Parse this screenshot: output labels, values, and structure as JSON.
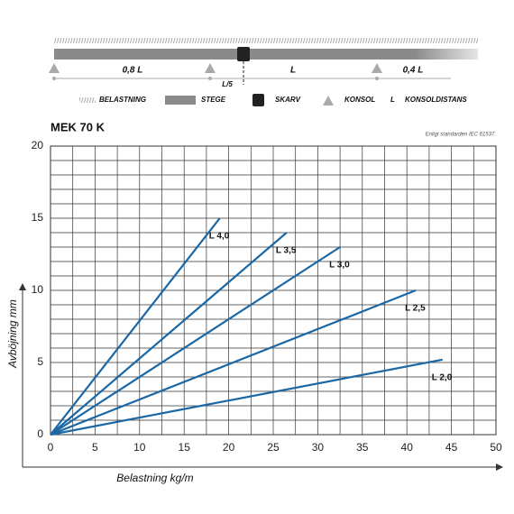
{
  "diagram": {
    "spans": [
      "0,8 L",
      "L",
      "0,4 L"
    ],
    "splice_offset": "L/5",
    "legend": [
      "BELASTNING",
      "STEGE",
      "SKARV",
      "KONSOL",
      "L",
      "KONSOLDISTANS"
    ]
  },
  "chart_data": {
    "type": "line",
    "title": "MEK 70 K",
    "subtitle": "Enligt standarden IEC 61537.",
    "x_label": "Belastning kg/m",
    "y_label": "Avböjning mm",
    "xlim": [
      0,
      50
    ],
    "ylim": [
      0,
      20
    ],
    "xticks": [
      0,
      5,
      10,
      15,
      20,
      25,
      30,
      35,
      40,
      45,
      50
    ],
    "yticks": [
      0,
      5,
      10,
      15,
      20
    ],
    "grid": true,
    "series": [
      {
        "name": "L 4,0",
        "color": "#1a67a6",
        "x": [
          0,
          19
        ],
        "values": [
          0,
          15
        ]
      },
      {
        "name": "L 3,5",
        "color": "#1a67a6",
        "x": [
          0,
          26.5
        ],
        "values": [
          0,
          14
        ]
      },
      {
        "name": "L 3,0",
        "color": "#1a67a6",
        "x": [
          0,
          32.5
        ],
        "values": [
          0,
          13
        ]
      },
      {
        "name": "L 2,5",
        "color": "#1a67a6",
        "x": [
          0,
          41
        ],
        "values": [
          0,
          10
        ]
      },
      {
        "name": "L 2,0",
        "color": "#1a67a6",
        "x": [
          0,
          44
        ],
        "values": [
          0,
          5.2
        ]
      }
    ]
  }
}
